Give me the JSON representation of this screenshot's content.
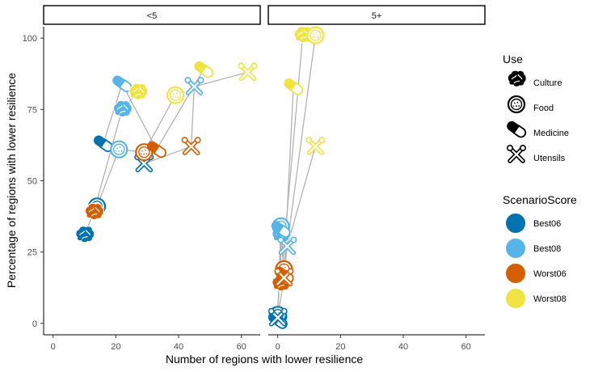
{
  "chart_data": {
    "type": "scatter",
    "xlabel": "Number of regions with lower resilience",
    "ylabel": "Percentage of regions with lower resilience",
    "xlim": [
      -3,
      66
    ],
    "ylim": [
      -4,
      104
    ],
    "x_ticks": [
      "0",
      "20",
      "40",
      "60"
    ],
    "y_ticks": [
      "0",
      "25",
      "50",
      "75",
      "100"
    ],
    "x_tick_values": [
      0,
      20,
      40,
      60
    ],
    "y_tick_values": [
      0,
      25,
      50,
      75,
      100
    ],
    "grid": false,
    "facets": [
      {
        "label": "<5",
        "points": [
          {
            "score": "Best06",
            "use": "Culture",
            "x": 10,
            "y": 31
          },
          {
            "score": "Best06",
            "use": "Food",
            "x": 14,
            "y": 41
          },
          {
            "score": "Best06",
            "use": "Medicine",
            "x": 16,
            "y": 63
          },
          {
            "score": "Best06",
            "use": "Utensils",
            "x": 29,
            "y": 56
          },
          {
            "score": "Best08",
            "use": "Culture",
            "x": 22,
            "y": 75
          },
          {
            "score": "Best08",
            "use": "Food",
            "x": 21,
            "y": 61
          },
          {
            "score": "Best08",
            "use": "Medicine",
            "x": 22,
            "y": 84
          },
          {
            "score": "Best08",
            "use": "Utensils",
            "x": 45,
            "y": 83
          },
          {
            "score": "Worst06",
            "use": "Culture",
            "x": 13,
            "y": 39
          },
          {
            "score": "Worst06",
            "use": "Food",
            "x": 29,
            "y": 60
          },
          {
            "score": "Worst06",
            "use": "Medicine",
            "x": 33,
            "y": 61
          },
          {
            "score": "Worst06",
            "use": "Utensils",
            "x": 44,
            "y": 62
          },
          {
            "score": "Worst08",
            "use": "Culture",
            "x": 27,
            "y": 81
          },
          {
            "score": "Worst08",
            "use": "Food",
            "x": 39,
            "y": 80
          },
          {
            "score": "Worst08",
            "use": "Medicine",
            "x": 48,
            "y": 89
          },
          {
            "score": "Worst08",
            "use": "Utensils",
            "x": 62,
            "y": 88
          }
        ]
      },
      {
        "label": "5+",
        "points": [
          {
            "score": "Best06",
            "use": "Culture",
            "x": 0,
            "y": 2
          },
          {
            "score": "Best06",
            "use": "Food",
            "x": 0,
            "y": 3
          },
          {
            "score": "Best06",
            "use": "Medicine",
            "x": 0,
            "y": 1
          },
          {
            "score": "Best06",
            "use": "Utensils",
            "x": 0,
            "y": 2
          },
          {
            "score": "Best08",
            "use": "Culture",
            "x": 1,
            "y": 31
          },
          {
            "score": "Best08",
            "use": "Food",
            "x": 1,
            "y": 34
          },
          {
            "score": "Best08",
            "use": "Medicine",
            "x": 1,
            "y": 33
          },
          {
            "score": "Best08",
            "use": "Utensils",
            "x": 3,
            "y": 27
          },
          {
            "score": "Worst06",
            "use": "Culture",
            "x": 1,
            "y": 14
          },
          {
            "score": "Worst06",
            "use": "Food",
            "x": 2,
            "y": 19
          },
          {
            "score": "Worst06",
            "use": "Medicine",
            "x": 2,
            "y": 17
          },
          {
            "score": "Worst06",
            "use": "Utensils",
            "x": 2,
            "y": 16
          },
          {
            "score": "Worst08",
            "use": "Culture",
            "x": 8,
            "y": 101
          },
          {
            "score": "Worst08",
            "use": "Food",
            "x": 12,
            "y": 101
          },
          {
            "score": "Worst08",
            "use": "Medicine",
            "x": 5,
            "y": 83
          },
          {
            "score": "Worst08",
            "use": "Utensils",
            "x": 12,
            "y": 62
          }
        ]
      }
    ],
    "legends": [
      {
        "title": "Use",
        "entries": [
          {
            "label": "Culture",
            "icon": "brain-icon"
          },
          {
            "label": "Food",
            "icon": "food-plate-icon"
          },
          {
            "label": "Medicine",
            "icon": "pill-capsule-icon"
          },
          {
            "label": "Utensils",
            "icon": "tools-icon"
          }
        ]
      },
      {
        "title": "ScenarioScore",
        "entries": [
          {
            "label": "Best06",
            "color": "#0072b2"
          },
          {
            "label": "Best08",
            "color": "#56b4e9"
          },
          {
            "label": "Worst06",
            "color": "#d55e00"
          },
          {
            "label": "Worst08",
            "color": "#f0e442"
          }
        ]
      }
    ],
    "legend_position": "right",
    "line_color": "#b3b3b3"
  }
}
